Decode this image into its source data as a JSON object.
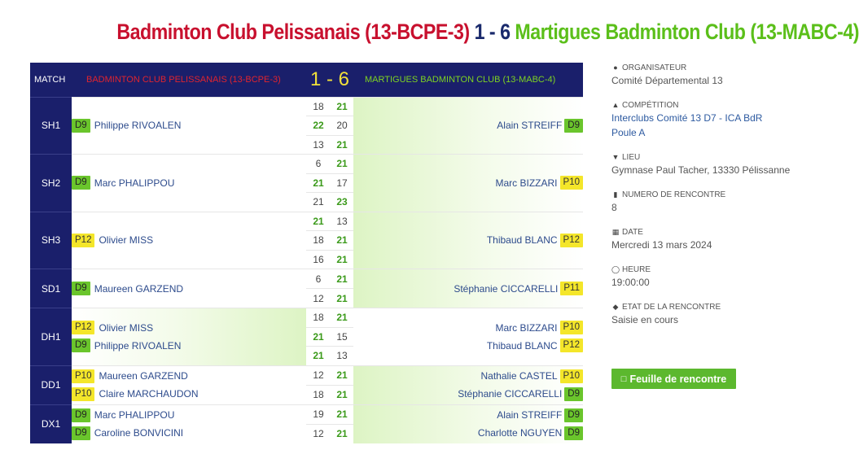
{
  "title": {
    "home": "Badminton Club Pelissanais (13-BCPE-3)",
    "score": "1 - 6",
    "away": "Martigues Badminton Club (13-MABC-4)"
  },
  "header": {
    "match_label": "MATCH",
    "home_team": "BADMINTON CLUB PELISSANAIS (13-BCPE-3)",
    "score": "1 - 6",
    "away_team": "MARTIGUES BADMINTON CLUB (13-MABC-4)"
  },
  "matches": [
    {
      "code": "SH1",
      "winner": "away",
      "home_players": [
        {
          "rank": "D9",
          "color": "green",
          "name": "Philippe RIVOALEN"
        }
      ],
      "away_players": [
        {
          "rank": "D9",
          "color": "green",
          "name": "Alain STREIFF"
        }
      ],
      "sets": [
        {
          "home": "18",
          "away": "21",
          "w": "away"
        },
        {
          "home": "22",
          "away": "20",
          "w": "home"
        },
        {
          "home": "13",
          "away": "21",
          "w": "away"
        }
      ]
    },
    {
      "code": "SH2",
      "winner": "away",
      "home_players": [
        {
          "rank": "D9",
          "color": "green",
          "name": "Marc PHALIPPOU"
        }
      ],
      "away_players": [
        {
          "rank": "P10",
          "color": "yellow",
          "name": "Marc BIZZARI"
        }
      ],
      "sets": [
        {
          "home": "6",
          "away": "21",
          "w": "away"
        },
        {
          "home": "21",
          "away": "17",
          "w": "home"
        },
        {
          "home": "21",
          "away": "23",
          "w": "away"
        }
      ]
    },
    {
      "code": "SH3",
      "winner": "away",
      "home_players": [
        {
          "rank": "P12",
          "color": "yellow",
          "name": "Olivier MISS"
        }
      ],
      "away_players": [
        {
          "rank": "P12",
          "color": "yellow",
          "name": "Thibaud BLANC"
        }
      ],
      "sets": [
        {
          "home": "21",
          "away": "13",
          "w": "home"
        },
        {
          "home": "18",
          "away": "21",
          "w": "away"
        },
        {
          "home": "16",
          "away": "21",
          "w": "away"
        }
      ]
    },
    {
      "code": "SD1",
      "winner": "away",
      "home_players": [
        {
          "rank": "D9",
          "color": "green",
          "name": "Maureen GARZEND"
        }
      ],
      "away_players": [
        {
          "rank": "P11",
          "color": "yellow",
          "name": "Stéphanie CICCARELLI"
        }
      ],
      "sets": [
        {
          "home": "6",
          "away": "21",
          "w": "away"
        },
        {
          "home": "12",
          "away": "21",
          "w": "away"
        }
      ]
    },
    {
      "code": "DH1",
      "winner": "home",
      "home_players": [
        {
          "rank": "P12",
          "color": "yellow",
          "name": "Olivier MISS"
        },
        {
          "rank": "D9",
          "color": "green",
          "name": "Philippe RIVOALEN"
        }
      ],
      "away_players": [
        {
          "rank": "P10",
          "color": "yellow",
          "name": "Marc BIZZARI"
        },
        {
          "rank": "P12",
          "color": "yellow",
          "name": "Thibaud BLANC"
        }
      ],
      "sets": [
        {
          "home": "18",
          "away": "21",
          "w": "away"
        },
        {
          "home": "21",
          "away": "15",
          "w": "home"
        },
        {
          "home": "21",
          "away": "13",
          "w": "home"
        }
      ]
    },
    {
      "code": "DD1",
      "winner": "away",
      "home_players": [
        {
          "rank": "P10",
          "color": "yellow",
          "name": "Maureen GARZEND"
        },
        {
          "rank": "P10",
          "color": "yellow",
          "name": "Claire MARCHAUDON"
        }
      ],
      "away_players": [
        {
          "rank": "P10",
          "color": "yellow",
          "name": "Nathalie CASTEL"
        },
        {
          "rank": "D9",
          "color": "green",
          "name": "Stéphanie CICCARELLI"
        }
      ],
      "sets": [
        {
          "home": "12",
          "away": "21",
          "w": "away"
        },
        {
          "home": "18",
          "away": "21",
          "w": "away"
        }
      ]
    },
    {
      "code": "DX1",
      "winner": "away",
      "home_players": [
        {
          "rank": "D9",
          "color": "green",
          "name": "Marc PHALIPPOU"
        },
        {
          "rank": "D9",
          "color": "green",
          "name": "Caroline BONVICINI"
        }
      ],
      "away_players": [
        {
          "rank": "D9",
          "color": "green",
          "name": "Alain STREIFF"
        },
        {
          "rank": "D9",
          "color": "green",
          "name": "Charlotte NGUYEN"
        }
      ],
      "sets": [
        {
          "home": "19",
          "away": "21",
          "w": "away"
        },
        {
          "home": "12",
          "away": "21",
          "w": "away"
        }
      ]
    }
  ],
  "info": {
    "organisateur_label": "ORGANISATEUR",
    "organisateur": "Comité Départemental 13",
    "competition_label": "COMPÉTITION",
    "competition_line1": "Interclubs Comité 13 D7 - ICA BdR",
    "competition_line2": "Poule A",
    "lieu_label": "LIEU",
    "lieu": "Gymnase Paul Tacher, 13330 Pélissanne",
    "numero_label": "NUMERO DE RENCONTRE",
    "numero": "8",
    "date_label": "DATE",
    "date": "Mercredi 13 mars 2024",
    "heure_label": "HEURE",
    "heure": "19:00:00",
    "etat_label": "ETAT DE LA RENCONTRE",
    "etat": "Saisie en cours",
    "button": "Feuille de rencontre"
  },
  "colors": {
    "home_red": "#c8102e",
    "away_green": "#5bbf1a",
    "navy": "#1a1f6b",
    "score_yellow": "#f2e03a",
    "badge_green": "#6ac52c",
    "badge_yellow": "#f4e62a"
  }
}
